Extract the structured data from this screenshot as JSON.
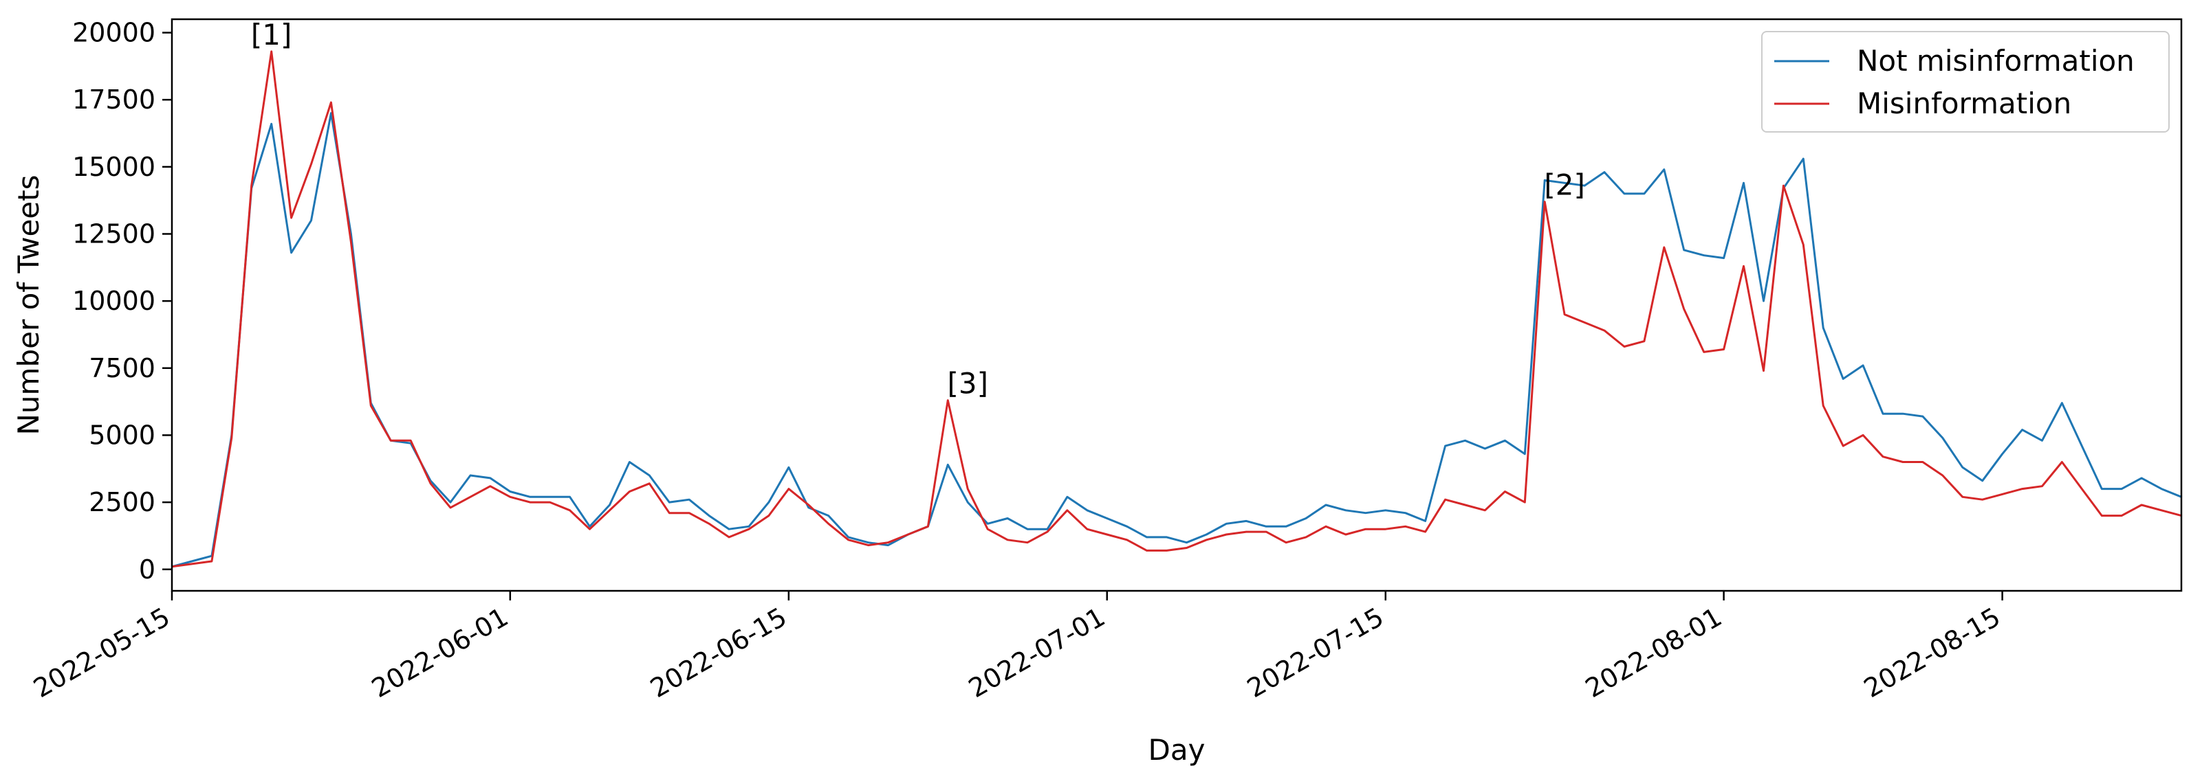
{
  "chart_data": {
    "type": "line",
    "title": "",
    "xlabel": "Day",
    "ylabel": "Number of Tweets",
    "x_start": "2022-05-15",
    "x_end": "2022-08-24",
    "xlim": [
      "2022-05-15",
      "2022-08-24"
    ],
    "ylim": [
      -800,
      20500
    ],
    "x_ticks": [
      "2022-05-15",
      "2022-06-01",
      "2022-06-15",
      "2022-07-01",
      "2022-07-15",
      "2022-08-01",
      "2022-08-15"
    ],
    "y_ticks": [
      0,
      2500,
      5000,
      7500,
      10000,
      12500,
      15000,
      17500,
      20000
    ],
    "grid": false,
    "legend_position": "top-right",
    "series": [
      {
        "name": "Not misinformation",
        "color": "#1f77b4",
        "values": [
          100,
          300,
          500,
          5000,
          14200,
          16600,
          11800,
          13000,
          17000,
          12500,
          6200,
          4800,
          4700,
          3300,
          2500,
          3500,
          3400,
          2900,
          2700,
          2700,
          2700,
          1600,
          2400,
          4000,
          3500,
          2500,
          2600,
          2000,
          1500,
          1600,
          2500,
          3800,
          2300,
          2000,
          1200,
          1000,
          900,
          1300,
          1600,
          3900,
          2500,
          1700,
          1900,
          1500,
          1500,
          2700,
          2200,
          1900,
          1600,
          1200,
          1200,
          1000,
          1300,
          1700,
          1800,
          1600,
          1600,
          1900,
          2400,
          2200,
          2100,
          2200,
          2100,
          1800,
          4600,
          4800,
          4500,
          4800,
          4300,
          14500,
          14400,
          14300,
          14800,
          14000,
          14000,
          14900,
          11900,
          11700,
          11600,
          14400,
          10000,
          14200,
          15300,
          9000,
          7100,
          7600,
          5800,
          5800,
          5700,
          4900,
          3800,
          3300,
          4300,
          5200,
          4800,
          6200,
          4600,
          3000,
          3000,
          3400,
          3000,
          2700
        ]
      },
      {
        "name": "Misinformation",
        "color": "#d62728",
        "values": [
          100,
          200,
          300,
          4900,
          14300,
          19300,
          13100,
          15100,
          17400,
          12200,
          6100,
          4800,
          4800,
          3200,
          2300,
          2700,
          3100,
          2700,
          2500,
          2500,
          2200,
          1500,
          2200,
          2900,
          3200,
          2100,
          2100,
          1700,
          1200,
          1500,
          2000,
          3000,
          2400,
          1700,
          1100,
          900,
          1000,
          1300,
          1600,
          6300,
          3000,
          1500,
          1100,
          1000,
          1400,
          2200,
          1500,
          1300,
          1100,
          700,
          700,
          800,
          1100,
          1300,
          1400,
          1400,
          1000,
          1200,
          1600,
          1300,
          1500,
          1500,
          1600,
          1400,
          2600,
          2400,
          2200,
          2900,
          2500,
          13700,
          9500,
          9200,
          8900,
          8300,
          8500,
          12000,
          9700,
          8100,
          8200,
          11300,
          7400,
          14300,
          12100,
          6100,
          4600,
          5000,
          4200,
          4000,
          4000,
          3500,
          2700,
          2600,
          2800,
          3000,
          3100,
          4000,
          3000,
          2000,
          2000,
          2400,
          2200,
          2000
        ]
      }
    ],
    "annotations": [
      {
        "label": "[1]",
        "date": "2022-05-20",
        "y": 19300
      },
      {
        "label": "[3]",
        "date": "2022-06-24",
        "y": 6300
      },
      {
        "label": "[2]",
        "date": "2022-07-24",
        "y": 13700
      }
    ]
  }
}
